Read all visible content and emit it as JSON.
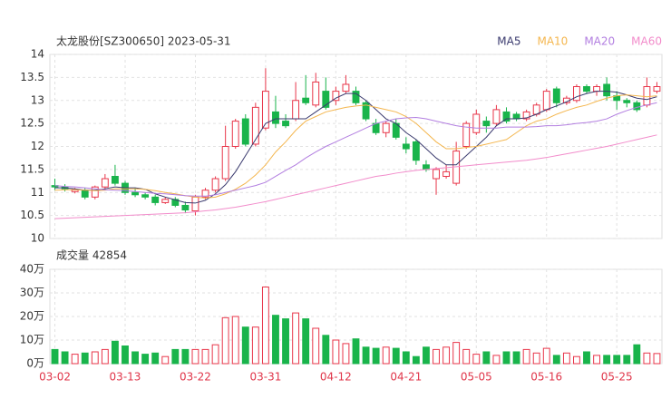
{
  "chart_data": [
    {
      "type": "candlestick",
      "title": "太龙股份[SZ300650] 2023-05-31",
      "up_color": "#e8364a",
      "down_color": "#19b44b",
      "categories": [
        "03-02",
        null,
        null,
        null,
        null,
        null,
        null,
        "03-13",
        null,
        null,
        null,
        null,
        null,
        null,
        "03-22",
        null,
        null,
        null,
        null,
        null,
        null,
        "03-31",
        null,
        null,
        null,
        null,
        null,
        null,
        "04-12",
        null,
        null,
        null,
        null,
        null,
        null,
        "04-21",
        null,
        null,
        null,
        null,
        null,
        null,
        "05-05",
        null,
        null,
        null,
        null,
        null,
        null,
        "05-16",
        null,
        null,
        null,
        null,
        null,
        null,
        "05-25",
        null,
        null,
        null,
        null
      ],
      "open": [
        11.15,
        11.12,
        11.02,
        11.05,
        10.9,
        11.12,
        11.35,
        11.2,
        11.0,
        10.95,
        10.9,
        10.78,
        10.85,
        10.72,
        10.6,
        10.9,
        11.05,
        11.3,
        12.0,
        12.6,
        12.05,
        12.4,
        12.75,
        12.55,
        12.6,
        13.05,
        12.9,
        13.2,
        13.0,
        13.2,
        13.2,
        12.95,
        12.5,
        12.3,
        12.5,
        12.05,
        12.1,
        11.6,
        11.3,
        11.35,
        11.2,
        12.0,
        12.3,
        12.55,
        12.5,
        12.75,
        12.7,
        12.6,
        12.7,
        12.8,
        13.25,
        12.95,
        13.0,
        13.3,
        13.2,
        13.35,
        13.1,
        13.0,
        12.95,
        12.9,
        13.2
      ],
      "high": [
        11.3,
        11.18,
        11.1,
        11.1,
        11.15,
        11.4,
        11.6,
        11.25,
        11.1,
        11.0,
        10.95,
        10.9,
        10.9,
        10.8,
        10.95,
        11.1,
        11.35,
        12.45,
        12.6,
        12.7,
        12.95,
        13.7,
        13.1,
        12.7,
        13.4,
        13.55,
        13.6,
        13.5,
        13.3,
        13.55,
        13.3,
        13.0,
        12.6,
        12.55,
        12.6,
        12.2,
        12.15,
        11.7,
        11.55,
        11.6,
        12.1,
        12.55,
        12.8,
        12.65,
        12.9,
        12.85,
        12.75,
        12.8,
        12.95,
        13.25,
        13.3,
        13.1,
        13.35,
        13.35,
        13.35,
        13.5,
        13.2,
        13.05,
        13.0,
        13.5,
        13.4
      ],
      "low": [
        11.05,
        11.02,
        10.98,
        10.85,
        10.85,
        11.05,
        11.15,
        10.95,
        10.9,
        10.85,
        10.72,
        10.75,
        10.68,
        10.55,
        10.5,
        10.85,
        11.0,
        11.25,
        11.95,
        12.0,
        12.0,
        12.35,
        12.4,
        12.4,
        12.55,
        12.9,
        12.85,
        12.8,
        12.9,
        13.15,
        12.9,
        12.55,
        12.25,
        12.2,
        12.15,
        11.85,
        11.6,
        11.45,
        10.95,
        11.3,
        11.15,
        11.95,
        12.25,
        12.3,
        12.45,
        12.5,
        12.55,
        12.55,
        12.65,
        12.75,
        12.85,
        12.9,
        12.95,
        13.15,
        13.1,
        13.0,
        12.8,
        12.85,
        12.75,
        12.85,
        13.15
      ],
      "close": [
        11.12,
        11.08,
        11.06,
        10.9,
        11.12,
        11.3,
        11.2,
        11.0,
        10.95,
        10.9,
        10.78,
        10.85,
        10.72,
        10.62,
        10.9,
        11.05,
        11.3,
        12.0,
        12.55,
        12.05,
        12.85,
        13.2,
        12.5,
        12.45,
        13.0,
        12.95,
        13.4,
        12.85,
        13.2,
        13.35,
        12.95,
        12.6,
        12.3,
        12.5,
        12.2,
        11.95,
        11.7,
        11.5,
        11.5,
        11.45,
        11.9,
        12.5,
        12.7,
        12.45,
        12.8,
        12.55,
        12.6,
        12.75,
        12.9,
        13.2,
        12.95,
        13.05,
        13.3,
        13.2,
        13.3,
        13.1,
        13.0,
        12.95,
        12.8,
        13.3,
        13.3
      ],
      "series": [
        {
          "name": "MA5",
          "color": "#3a3a6e",
          "values": [
            11.1,
            11.1,
            11.08,
            11.05,
            11.05,
            11.08,
            11.12,
            11.1,
            11.1,
            11.07,
            10.97,
            10.9,
            10.84,
            10.78,
            10.77,
            10.83,
            10.97,
            11.17,
            11.45,
            11.8,
            12.15,
            12.5,
            12.6,
            12.6,
            12.6,
            12.6,
            12.75,
            12.9,
            13.05,
            13.15,
            13.15,
            13.0,
            12.8,
            12.6,
            12.5,
            12.3,
            12.15,
            11.95,
            11.75,
            11.6,
            11.6,
            11.8,
            12.0,
            12.2,
            12.45,
            12.6,
            12.6,
            12.62,
            12.7,
            12.8,
            12.88,
            12.97,
            13.08,
            13.15,
            13.2,
            13.2,
            13.18,
            13.12,
            13.05,
            13.02,
            13.08
          ]
        },
        {
          "name": "MA10",
          "color": "#f4b64e",
          "values": [
            11.05,
            11.06,
            11.06,
            11.05,
            11.04,
            11.05,
            11.08,
            11.08,
            11.08,
            11.07,
            11.04,
            11.0,
            10.97,
            10.93,
            10.9,
            10.88,
            10.9,
            10.97,
            11.07,
            11.2,
            11.38,
            11.6,
            11.88,
            12.1,
            12.35,
            12.55,
            12.65,
            12.75,
            12.8,
            12.85,
            12.88,
            12.9,
            12.85,
            12.8,
            12.75,
            12.65,
            12.5,
            12.3,
            12.1,
            11.95,
            11.95,
            11.98,
            12.0,
            12.05,
            12.1,
            12.15,
            12.3,
            12.45,
            12.55,
            12.6,
            12.7,
            12.78,
            12.85,
            12.9,
            12.98,
            13.05,
            13.1,
            13.12,
            13.1,
            13.08,
            13.1
          ]
        },
        {
          "name": "MA20",
          "color": "#b27ee0",
          "values": [
            11.15,
            11.13,
            11.12,
            11.1,
            11.08,
            11.06,
            11.05,
            11.04,
            11.02,
            11.0,
            10.98,
            10.97,
            10.95,
            10.93,
            10.92,
            10.92,
            10.95,
            11.0,
            11.05,
            11.1,
            11.15,
            11.22,
            11.35,
            11.48,
            11.6,
            11.75,
            11.88,
            12.0,
            12.1,
            12.2,
            12.3,
            12.4,
            12.5,
            12.55,
            12.6,
            12.62,
            12.63,
            12.6,
            12.55,
            12.5,
            12.45,
            12.42,
            12.4,
            12.4,
            12.4,
            12.42,
            12.42,
            12.42,
            12.43,
            12.45,
            12.45,
            12.47,
            12.5,
            12.52,
            12.55,
            12.6,
            12.7,
            12.78,
            12.85,
            12.9,
            12.95
          ]
        },
        {
          "name": "MA60",
          "color": "#f28ccb",
          "values": [
            10.43,
            10.44,
            10.45,
            10.46,
            10.47,
            10.48,
            10.49,
            10.5,
            10.51,
            10.52,
            10.53,
            10.54,
            10.55,
            10.56,
            10.58,
            10.6,
            10.62,
            10.65,
            10.68,
            10.72,
            10.76,
            10.8,
            10.85,
            10.9,
            10.95,
            11.0,
            11.05,
            11.1,
            11.15,
            11.2,
            11.25,
            11.3,
            11.35,
            11.38,
            11.42,
            11.45,
            11.48,
            11.5,
            11.52,
            11.54,
            11.56,
            11.58,
            11.6,
            11.62,
            11.64,
            11.66,
            11.68,
            11.7,
            11.73,
            11.76,
            11.8,
            11.84,
            11.88,
            11.92,
            11.96,
            12.0,
            12.05,
            12.1,
            12.15,
            12.2,
            12.25
          ]
        }
      ],
      "ylim": [
        10,
        14
      ],
      "yticks": [
        10,
        10.5,
        11,
        11.5,
        12,
        12.5,
        13,
        13.5,
        14
      ],
      "grid": true,
      "legend": "top-right"
    },
    {
      "type": "bar",
      "title": "成交量 42854",
      "values": [
        6,
        5,
        4,
        4.5,
        5,
        6,
        9.5,
        7.5,
        5,
        4,
        4.5,
        3,
        6,
        6,
        6,
        6,
        8,
        19.5,
        20,
        15.5,
        15.5,
        32.5,
        20.5,
        19,
        21.5,
        19,
        15,
        12,
        10,
        8.5,
        10.5,
        7,
        6.5,
        7,
        6.5,
        5,
        3,
        7,
        6,
        7,
        9,
        6,
        4,
        5,
        3.5,
        5,
        5,
        6,
        4.5,
        6.5,
        3.5,
        4.5,
        3,
        5,
        3.5,
        3.5,
        3.5,
        3.5,
        8,
        4.5,
        4.2854
      ],
      "ylim": [
        0,
        40
      ],
      "yticks": [
        {
          "value": 0,
          "label": "0万"
        },
        {
          "value": 10,
          "label": "10万"
        },
        {
          "value": 20,
          "label": "20万"
        },
        {
          "value": 30,
          "label": "30万"
        },
        {
          "value": 40,
          "label": "40万"
        }
      ],
      "grid": true
    }
  ]
}
